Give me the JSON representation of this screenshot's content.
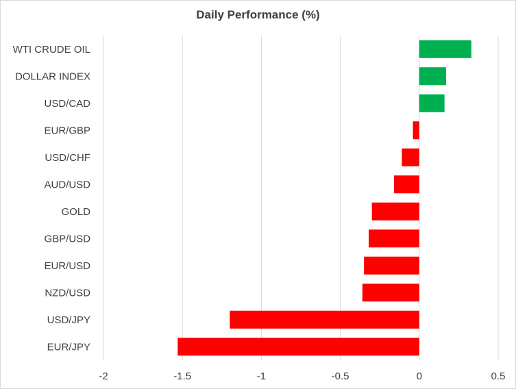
{
  "chart_data": {
    "type": "bar",
    "orientation": "horizontal",
    "title": "Daily Performance (%)",
    "xlabel": "",
    "ylabel": "",
    "categories": [
      "WTI CRUDE OIL",
      "DOLLAR INDEX",
      "USD/CAD",
      "EUR/GBP",
      "USD/CHF",
      "AUD/USD",
      "GOLD",
      "GBP/USD",
      "EUR/USD",
      "NZD/USD",
      "USD/JPY",
      "EUR/JPY"
    ],
    "values": [
      0.33,
      0.17,
      0.16,
      -0.04,
      -0.11,
      -0.16,
      -0.3,
      -0.32,
      -0.35,
      -0.36,
      -1.2,
      -1.53
    ],
    "xlim": [
      -2,
      0.5
    ],
    "xticks": [
      -2,
      -1.5,
      -1,
      -0.5,
      0,
      0.5
    ],
    "xtick_labels": [
      "-2",
      "-1.5",
      "-1",
      "-0.5",
      "0",
      "0.5"
    ],
    "grid": "vertical",
    "legend": "none",
    "colors": {
      "positive": "#00b050",
      "negative": "#ff0000",
      "grid": "#d9d9d9",
      "text": "#404040"
    }
  }
}
